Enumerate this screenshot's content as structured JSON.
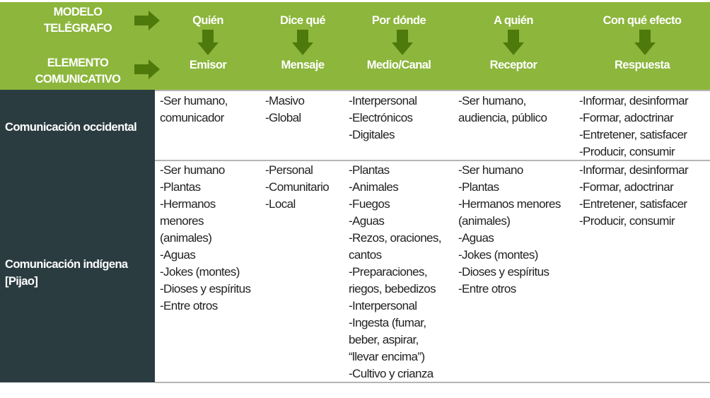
{
  "header": {
    "row1_label": "MODELO\nTELÉGRAFO",
    "row2_label": "ELEMENTO\nCOMUNICATIVO",
    "columns": [
      {
        "model": "Quién",
        "element": "Emisor"
      },
      {
        "model": "Dice qué",
        "element": "Mensaje"
      },
      {
        "model": "Por dónde",
        "element": "Medio/Canal"
      },
      {
        "model": "A quién",
        "element": "Receptor"
      },
      {
        "model": "Con qué efecto",
        "element": "Respuesta"
      }
    ],
    "colors": {
      "header_bg": "#8cb63c",
      "arrow": "#4e7a0c",
      "row_label_bg": "#2b3c41"
    }
  },
  "rows": [
    {
      "label": "Comunicación occidental",
      "cells": [
        "-Ser humano,\ncomunicador",
        "-Masivo\n-Global",
        "-Interpersonal\n-Electrónicos\n-Digitales",
        "-Ser humano,\naudiencia, público",
        "-Informar, desinformar\n-Formar, adoctrinar\n-Entretener, satisfacer\n-Producir, consumir"
      ]
    },
    {
      "label": "Comunicación indígena\n[Pijao]",
      "cells": [
        "-Ser humano\n-Plantas\n-Hermanos\nmenores\n(animales)\n-Aguas\n-Jokes (montes)\n-Dioses y espíritus\n-Entre otros",
        "-Personal\n-Comunitario\n-Local",
        "-Plantas\n-Animales\n-Fuegos\n-Aguas\n-Rezos, oraciones,\ncantos\n-Preparaciones,\nriegos, bebedizos\n-Interpersonal\n-Ingesta (fumar,\nbeber, aspirar,\n“llevar encima”)\n-Cultivo y crianza",
        "-Ser humano\n-Plantas\n-Hermanos menores\n(animales)\n-Aguas\n-Jokes (montes)\n-Dioses y espíritus\n-Entre otros",
        "-Informar, desinformar\n-Formar, adoctrinar\n-Entretener, satisfacer\n-Producir, consumir"
      ]
    }
  ]
}
